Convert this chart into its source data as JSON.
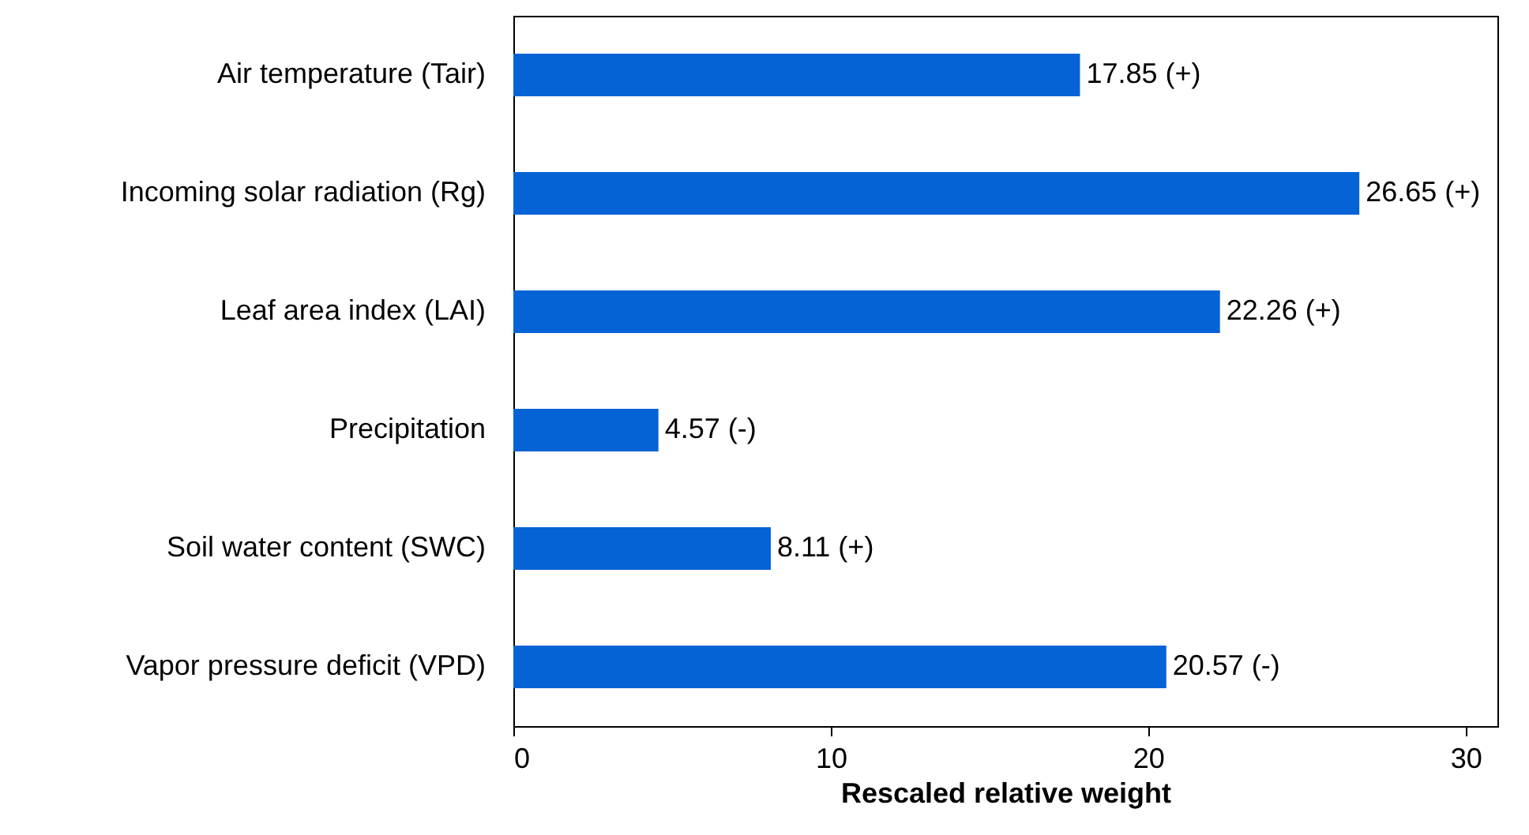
{
  "chart_data": {
    "type": "bar",
    "orientation": "horizontal",
    "xlabel": "Rescaled relative weight",
    "categories": [
      "Air temperature (Tair)",
      "Incoming solar radiation (Rg)",
      "Leaf area index (LAI)",
      "Precipitation",
      "Soil water content (SWC)",
      "Vapor pressure deficit (VPD)"
    ],
    "values": [
      17.85,
      26.65,
      22.26,
      4.57,
      8.11,
      20.57
    ],
    "value_labels": [
      "17.85 (+)",
      "26.65 (+)",
      "22.26 (+)",
      "4.57 (-)",
      "8.11 (+)",
      "20.57 (-)"
    ],
    "color": "#0563d6",
    "xlim": [
      0,
      31
    ],
    "xticks": [
      0,
      10,
      20,
      30
    ],
    "grid": false
  }
}
